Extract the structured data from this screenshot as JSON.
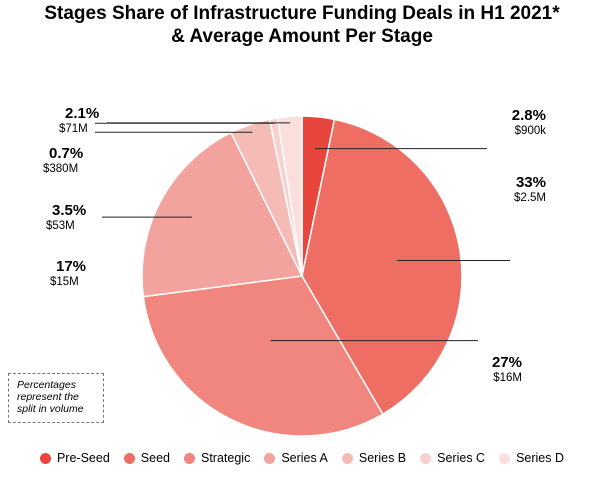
{
  "chart_data": {
    "type": "pie",
    "title": "Stages Share of Infrastructure Funding Deals in H1 2021* & Average Amount Per Stage",
    "title_lines": [
      "Stages Share of Infrastructure Funding Deals in H1 2021*",
      "& Average Amount Per Stage"
    ],
    "slices": [
      {
        "name": "Pre-Seed",
        "value": 2.8,
        "label": "2.8%",
        "amount": "$900k",
        "color": "#e8453c"
      },
      {
        "name": "Seed",
        "value": 33,
        "label": "33%",
        "amount": "$2.5M",
        "color": "#ef6e64"
      },
      {
        "name": "Strategic",
        "value": 27,
        "label": "27%",
        "amount": "$16M",
        "color": "#f0867e"
      },
      {
        "name": "Series A",
        "value": 17,
        "label": "17%",
        "amount": "$15M",
        "color": "#f3a39d"
      },
      {
        "name": "Series B",
        "value": 3.5,
        "label": "3.5%",
        "amount": "$53M",
        "color": "#f5bbb7"
      },
      {
        "name": "Series C",
        "value": 0.7,
        "label": "0.7%",
        "amount": "$380M",
        "color": "#f8d0cd"
      },
      {
        "name": "Series D",
        "value": 2.1,
        "label": "2.1%",
        "amount": "$71M",
        "color": "#fadfdd"
      }
    ],
    "legend_position": "bottom",
    "note": "Percentages represent the split in volume"
  }
}
